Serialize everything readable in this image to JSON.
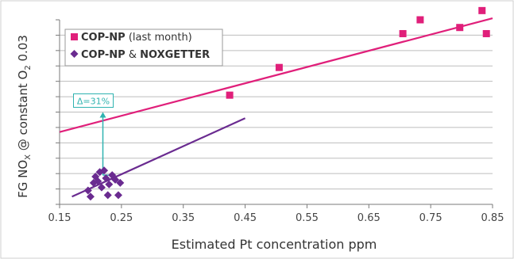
{
  "chart_data": {
    "type": "scatter",
    "title": "",
    "xlabel": "Estimated Pt concentration ppm",
    "ylabel_parts": {
      "pre": "FG NO",
      "sub1": "X",
      "mid": " @ constant O",
      "sub2": "2",
      "post": "  0.03"
    },
    "xlim": [
      0.15,
      0.85
    ],
    "x_ticks": [
      "0.15",
      "0.25",
      "0.35",
      "0.45",
      "0.55",
      "0.65",
      "0.75",
      "0.85"
    ],
    "y_gridlines": 11,
    "grid": true,
    "legend_position": "top-left",
    "series": [
      {
        "name_bold": "COP-NP",
        "name_rest": " (last month)",
        "marker": "square",
        "color": "#e01f7a",
        "points": [
          [
            0.425,
            7.1
          ],
          [
            0.505,
            8.9
          ],
          [
            0.705,
            11.1
          ],
          [
            0.733,
            12.0
          ],
          [
            0.797,
            11.5
          ],
          [
            0.833,
            12.6
          ],
          [
            0.84,
            11.1
          ]
        ],
        "trend": [
          [
            0.15,
            4.7
          ],
          [
            0.85,
            12.1
          ]
        ]
      },
      {
        "name_bold": "COP-NP",
        "name_mid": " & ",
        "name_bold2": "NOXGETTER",
        "marker": "diamond",
        "color": "#6a2b90",
        "points": [
          [
            0.196,
            0.9
          ],
          [
            0.2,
            0.5
          ],
          [
            0.205,
            1.4
          ],
          [
            0.208,
            1.8
          ],
          [
            0.212,
            1.5
          ],
          [
            0.215,
            2.1
          ],
          [
            0.218,
            1.1
          ],
          [
            0.222,
            2.2
          ],
          [
            0.225,
            1.7
          ],
          [
            0.228,
            0.6
          ],
          [
            0.23,
            1.3
          ],
          [
            0.235,
            1.9
          ],
          [
            0.24,
            1.6
          ],
          [
            0.245,
            0.6
          ],
          [
            0.248,
            1.4
          ]
        ],
        "trend": [
          [
            0.17,
            0.5
          ],
          [
            0.45,
            5.6
          ]
        ]
      }
    ],
    "annotation": {
      "text": "Δ=31%",
      "x": 0.22,
      "y_from": 1.9,
      "y_to": 6.0,
      "color": "#2fb3b0"
    }
  }
}
